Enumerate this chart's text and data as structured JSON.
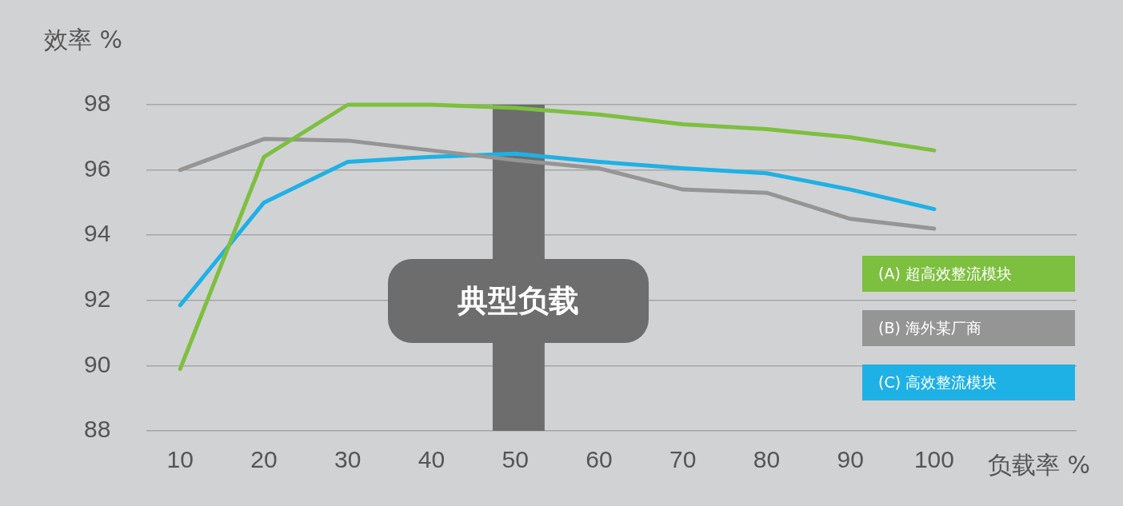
{
  "chart_data": {
    "type": "line",
    "xlabel": "负载率 %",
    "ylabel": "效率 %",
    "x": [
      10,
      20,
      30,
      40,
      50,
      60,
      70,
      80,
      90,
      100
    ],
    "series": [
      {
        "name": "(A) 超高效整流模块",
        "color": "#7dbf3f",
        "values": [
          89.9,
          96.4,
          98.0,
          98.0,
          97.9,
          97.7,
          97.4,
          97.25,
          97.0,
          96.6
        ]
      },
      {
        "name": "(B) 海外某厂商",
        "color": "#959595",
        "values": [
          96.0,
          96.95,
          96.9,
          96.6,
          96.3,
          96.05,
          95.4,
          95.3,
          94.5,
          94.2
        ]
      },
      {
        "name": "(C) 高效整流模块",
        "color": "#1eb1e6",
        "values": [
          91.85,
          95.0,
          96.25,
          96.4,
          96.5,
          96.25,
          96.05,
          95.9,
          95.4,
          94.8
        ]
      }
    ],
    "xlim": [
      6,
      117
    ],
    "xticks": [
      10,
      20,
      30,
      40,
      50,
      60,
      70,
      80,
      90,
      100
    ],
    "ylim": [
      88,
      98
    ],
    "yticks": [
      88,
      90,
      92,
      94,
      96,
      98
    ],
    "grid": "y",
    "legend": "right",
    "marker": "none",
    "line_style": "solid",
    "bands": [
      {
        "axis": "x",
        "from": 47.3,
        "to": 53.5,
        "label": "典型负载",
        "color": "#6d6d6d"
      }
    ]
  }
}
